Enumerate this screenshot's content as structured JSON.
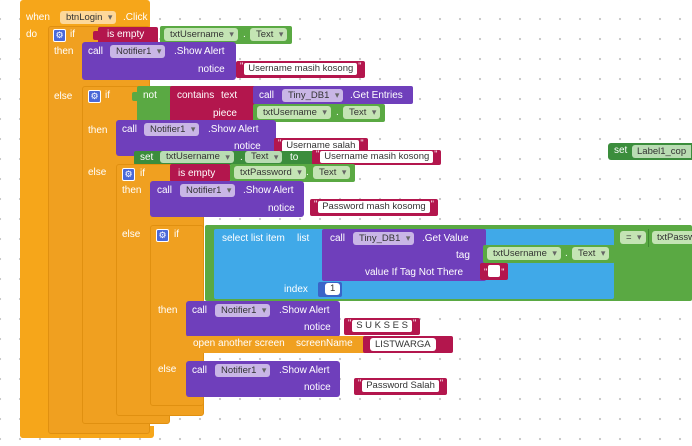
{
  "event": {
    "when": "when",
    "component": "btnLogin",
    "event_name": ".Click",
    "do": "do"
  },
  "kw": {
    "if": "if",
    "then": "then",
    "else": "else",
    "call": "call",
    "not": "not",
    "set": "set",
    "to": "to",
    "dot": "."
  },
  "if1": {
    "is_empty": "is empty",
    "component": "txtUsername",
    "property": "Text",
    "notifier": "Notifier1",
    "method": ".Show Alert",
    "notice_label": "notice",
    "message": "Username masih kosong"
  },
  "if2": {
    "contains": "contains",
    "text_label": "text",
    "db": "Tiny_DB1",
    "get_entries": ".Get Entries",
    "piece_label": "piece",
    "component": "txtUsername",
    "property": "Text",
    "notifier": "Notifier1",
    "method": ".Show Alert",
    "notice_label": "notice",
    "message": "Username salah",
    "set_component": "txtUsername",
    "set_property": "Text",
    "set_value": "Username masih kosong"
  },
  "if3": {
    "is_empty": "is empty",
    "component": "txtPassword",
    "property": "Text",
    "notifier": "Notifier1",
    "method": ".Show Alert",
    "notice_label": "notice",
    "message": "Password mash kosomg"
  },
  "if4": {
    "select_list_item": "select list item",
    "list_label": "list",
    "db": "Tiny_DB1",
    "get_value": ".Get Value",
    "tag_label": "tag",
    "tag_component": "txtUsername",
    "tag_property": "Text",
    "default_label": "value If Tag Not There",
    "default_value": "",
    "index_label": "index",
    "index_value": "1",
    "compare_op": "=",
    "compare_right": "txtPassw",
    "then_notifier": "Notifier1",
    "then_method": ".Show Alert",
    "then_notice_label": "notice",
    "then_message": "S U K S E S",
    "open_screen": "open another screen",
    "screen_name_label": "screenName",
    "screen_name": "LISTWARGA",
    "else_notifier": "Notifier1",
    "else_method": ".Show Alert",
    "else_notice_label": "notice",
    "else_message": "Password Salah"
  },
  "stray": {
    "set": "set",
    "component": "Label1_cop"
  },
  "colors": {
    "control": "#f6a61a",
    "text": "#b3164d",
    "logic": "#5aa943",
    "component": "#6f3fbb",
    "list": "#40a9e8",
    "math": "#3a64c8",
    "setter": "#3b8d3c"
  }
}
